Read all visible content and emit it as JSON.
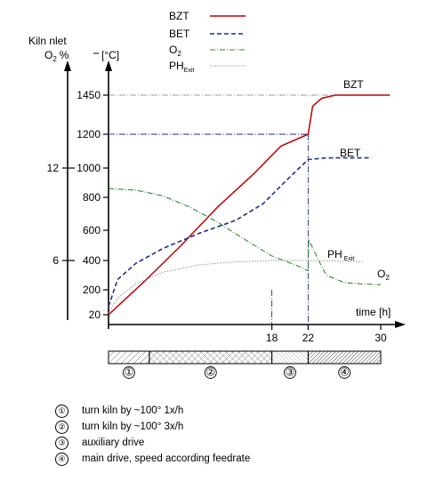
{
  "chart_data": {
    "type": "line",
    "title": "",
    "left_axis_title": "Kiln  nlet",
    "o2_axis_label": "O",
    "o2_axis_label_sub": "2",
    "o2_axis_unit": "%",
    "temp_axis_unit": "[°C]",
    "xlabel": "time [h]",
    "temp_ticks": [
      "20",
      "200",
      "400",
      "600",
      "800",
      "1000",
      "1200",
      "1450"
    ],
    "o2_ticks": [
      "6",
      "12"
    ],
    "x_ticks": [
      "18",
      "22",
      "30"
    ],
    "ylim": [
      20,
      1450
    ],
    "series": [
      {
        "name": "BZT",
        "color": "#c00000",
        "points": [
          [
            0,
            20
          ],
          [
            4,
            260
          ],
          [
            8,
            500
          ],
          [
            12,
            740
          ],
          [
            16,
            960
          ],
          [
            19,
            1130
          ],
          [
            22,
            1200
          ],
          [
            22.5,
            1380
          ],
          [
            23.5,
            1430
          ],
          [
            25,
            1450
          ],
          [
            31,
            1450
          ]
        ]
      },
      {
        "name": "BET",
        "color": "#1f2f8f",
        "points": [
          [
            0,
            80
          ],
          [
            1,
            270
          ],
          [
            3,
            380
          ],
          [
            6,
            480
          ],
          [
            10,
            580
          ],
          [
            14,
            660
          ],
          [
            17,
            760
          ],
          [
            20,
            940
          ],
          [
            22,
            1050
          ],
          [
            24,
            1060
          ],
          [
            29,
            1060
          ]
        ]
      },
      {
        "name": "O",
        "name_sub": "2",
        "color": "#2e8b2e",
        "points": [
          [
            0,
            860
          ],
          [
            3,
            850
          ],
          [
            6,
            810
          ],
          [
            9,
            740
          ],
          [
            12,
            650
          ],
          [
            15,
            540
          ],
          [
            18,
            430
          ],
          [
            21,
            360
          ],
          [
            22,
            330
          ],
          [
            22.05,
            540
          ],
          [
            23,
            420
          ],
          [
            24,
            300
          ],
          [
            26,
            250
          ],
          [
            28,
            240
          ],
          [
            30,
            235
          ]
        ]
      },
      {
        "name": "PH",
        "name_sub": "Exit",
        "color": "#808080",
        "points": [
          [
            0,
            30
          ],
          [
            1,
            140
          ],
          [
            3,
            240
          ],
          [
            6,
            320
          ],
          [
            10,
            370
          ],
          [
            14,
            390
          ],
          [
            18,
            400
          ],
          [
            22,
            400
          ],
          [
            26,
            395
          ],
          [
            28,
            392
          ]
        ]
      }
    ],
    "curve_labels": {
      "bzt": "BZT",
      "bet": "BET",
      "ph": "PH",
      "ph_sub": "Exit",
      "o2": "O",
      "o2_sub": "2"
    },
    "phases": [
      {
        "marker": "①",
        "start": 0,
        "end": 4.5,
        "pattern": "diagonal"
      },
      {
        "marker": "②",
        "start": 4.5,
        "end": 18,
        "pattern": "crosshatch"
      },
      {
        "marker": "③",
        "start": 18,
        "end": 22,
        "pattern": "fine"
      },
      {
        "marker": "④",
        "start": 22,
        "end": 30,
        "pattern": "dense"
      }
    ]
  },
  "legend": {
    "notes": [
      {
        "marker": "①",
        "text": "turn kiln by ~100° 1x/h"
      },
      {
        "marker": "②",
        "text": "turn kiln by ~100° 3x/h"
      },
      {
        "marker": "③",
        "text": "auxiliary drive"
      },
      {
        "marker": "④",
        "text": "main drive, speed according feedrate"
      }
    ]
  }
}
